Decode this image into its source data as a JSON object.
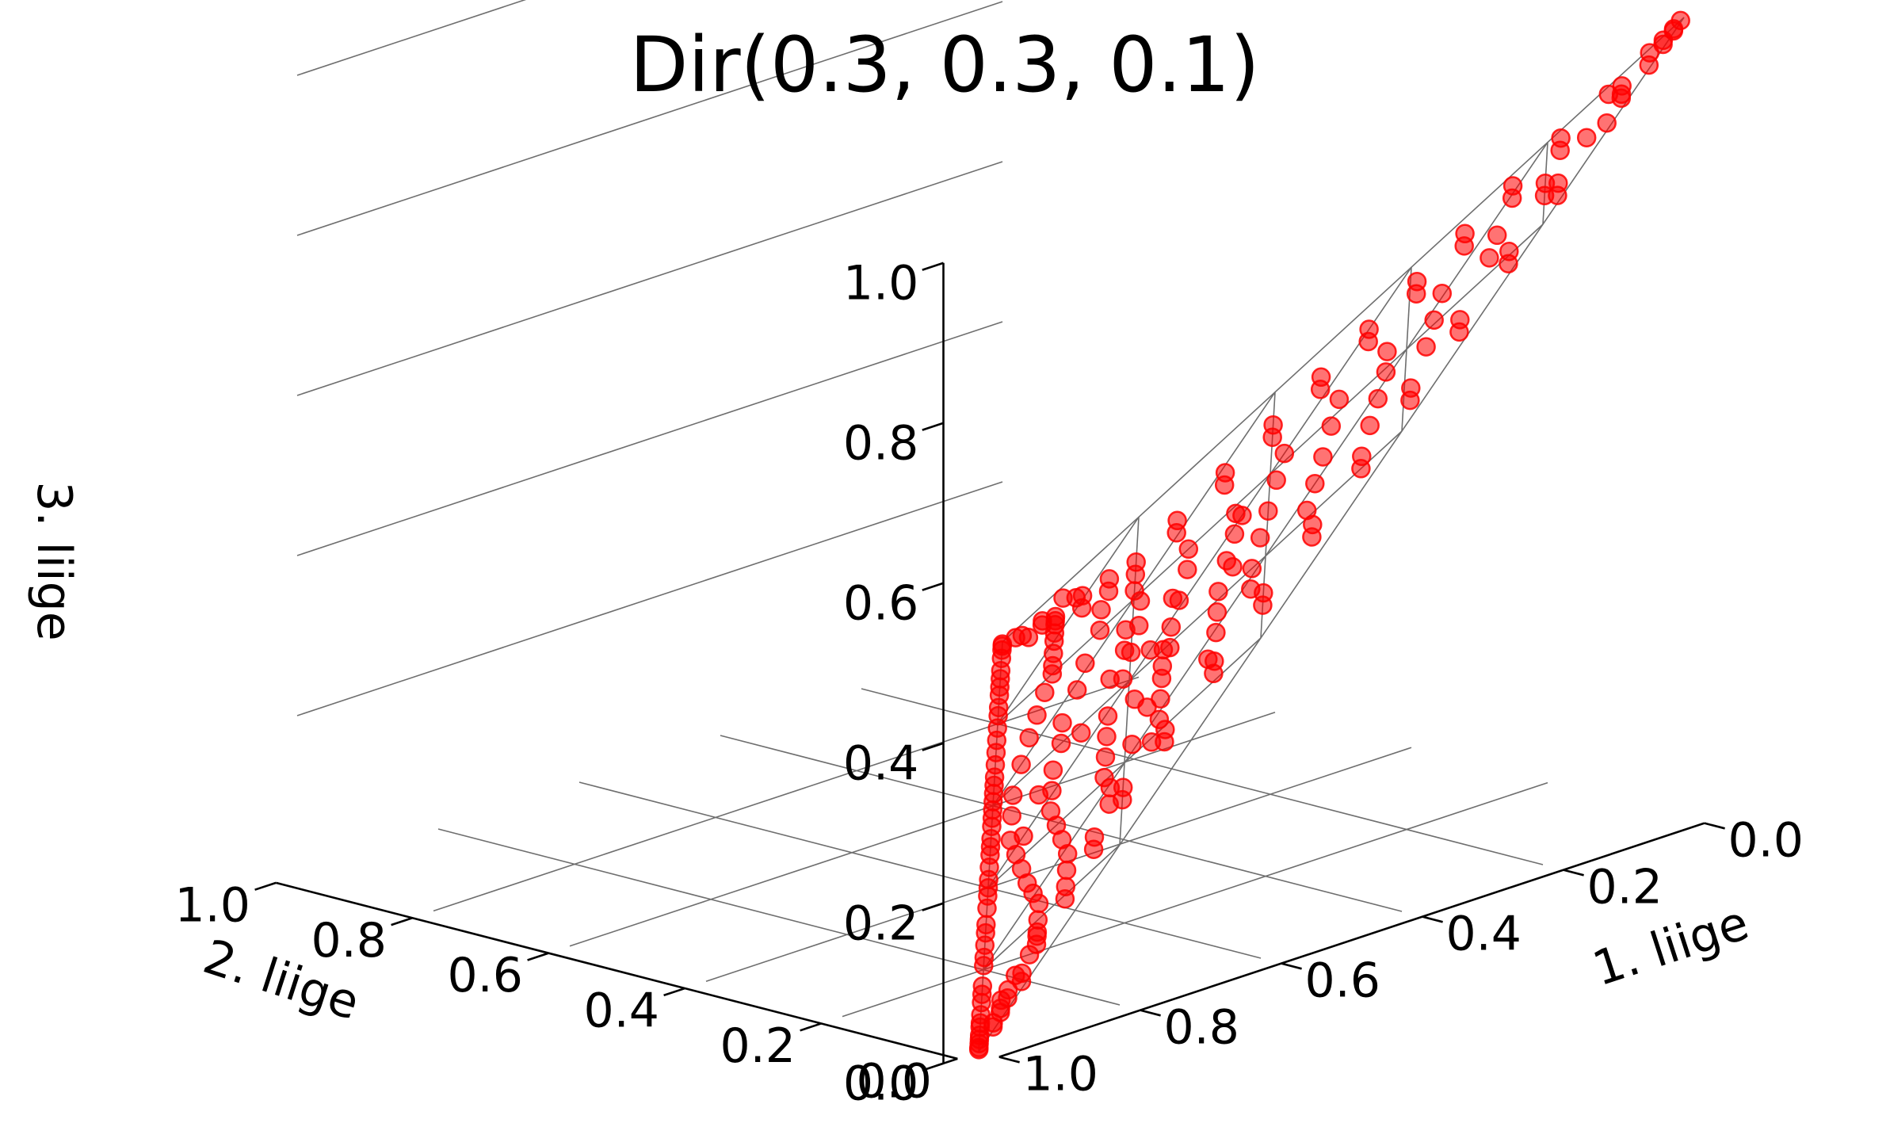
{
  "chart_data": {
    "type": "scatter",
    "title": "Dir(0.3, 0.3, 0.1)",
    "projection": "3d",
    "grid": true,
    "marker_color": "#ff0000",
    "marker_alpha": 0.55,
    "axes": {
      "x": {
        "label": "1. liige",
        "range": [
          0.0,
          1.0
        ],
        "ticks": [
          "0.0",
          "0.2",
          "0.4",
          "0.6",
          "0.8",
          "1.0"
        ]
      },
      "y": {
        "label": "2. liige",
        "range": [
          0.0,
          1.0
        ],
        "ticks": [
          "0.0",
          "0.2",
          "0.4",
          "0.6",
          "0.8",
          "1.0"
        ]
      },
      "z": {
        "label": "3. liige",
        "range": [
          0.0,
          1.0
        ],
        "ticks": [
          "0.0",
          "0.2",
          "0.4",
          "0.6",
          "0.8",
          "1.0"
        ]
      }
    },
    "points": [
      [
        0.62,
        0.38,
        0.0
      ],
      [
        0.55,
        0.45,
        0.0
      ],
      [
        0.48,
        0.52,
        0.0
      ],
      [
        0.41,
        0.59,
        0.0
      ],
      [
        0.37,
        0.63,
        0.0
      ],
      [
        0.33,
        0.67,
        0.0
      ],
      [
        0.27,
        0.73,
        0.0
      ],
      [
        0.21,
        0.79,
        0.0
      ],
      [
        0.16,
        0.84,
        0.0
      ],
      [
        0.11,
        0.89,
        0.0
      ],
      [
        0.07,
        0.93,
        0.0
      ],
      [
        0.04,
        0.96,
        0.0
      ],
      [
        0.02,
        0.98,
        0.0
      ],
      [
        0.01,
        0.99,
        0.0
      ],
      [
        0.005,
        0.995,
        0.0
      ],
      [
        0.99,
        0.01,
        0.0
      ],
      [
        0.98,
        0.02,
        0.0
      ],
      [
        0.96,
        0.04,
        0.0
      ],
      [
        0.94,
        0.06,
        0.0
      ],
      [
        0.91,
        0.09,
        0.0
      ],
      [
        0.88,
        0.12,
        0.0
      ],
      [
        0.84,
        0.16,
        0.0
      ],
      [
        0.79,
        0.21,
        0.0
      ],
      [
        0.74,
        0.26,
        0.0
      ],
      [
        0.69,
        0.31,
        0.0
      ],
      [
        0.65,
        0.35,
        0.0
      ],
      [
        0.58,
        0.42,
        0.0
      ],
      [
        0.52,
        0.48,
        0.0
      ],
      [
        0.45,
        0.55,
        0.0
      ],
      [
        0.39,
        0.61,
        0.0
      ],
      [
        0.3,
        0.7,
        0.0
      ],
      [
        0.24,
        0.76,
        0.0
      ],
      [
        0.18,
        0.82,
        0.0
      ],
      [
        0.13,
        0.87,
        0.0
      ],
      [
        0.09,
        0.91,
        0.0
      ],
      [
        0.995,
        0.005,
        0.0
      ],
      [
        0.97,
        0.03,
        0.0
      ],
      [
        0.93,
        0.07,
        0.0
      ],
      [
        0.86,
        0.14,
        0.0
      ],
      [
        0.77,
        0.23,
        0.0
      ],
      [
        0.71,
        0.29,
        0.0
      ],
      [
        0.6,
        0.4,
        0.0
      ],
      [
        0.5,
        0.5,
        0.0
      ],
      [
        0.43,
        0.57,
        0.0
      ],
      [
        0.35,
        0.65,
        0.0
      ],
      [
        0.02,
        0.96,
        0.02
      ],
      [
        0.03,
        0.94,
        0.03
      ],
      [
        0.05,
        0.91,
        0.04
      ],
      [
        0.04,
        0.9,
        0.06
      ],
      [
        0.06,
        0.86,
        0.08
      ],
      [
        0.08,
        0.84,
        0.08
      ],
      [
        0.07,
        0.81,
        0.12
      ],
      [
        0.1,
        0.78,
        0.12
      ],
      [
        0.09,
        0.75,
        0.16
      ],
      [
        0.12,
        0.72,
        0.16
      ],
      [
        0.11,
        0.69,
        0.2
      ],
      [
        0.14,
        0.66,
        0.2
      ],
      [
        0.1,
        0.64,
        0.26
      ],
      [
        0.13,
        0.61,
        0.26
      ],
      [
        0.09,
        0.58,
        0.33
      ],
      [
        0.12,
        0.55,
        0.33
      ],
      [
        0.08,
        0.52,
        0.4
      ],
      [
        0.11,
        0.49,
        0.4
      ],
      [
        0.07,
        0.46,
        0.47
      ],
      [
        0.1,
        0.43,
        0.47
      ],
      [
        0.06,
        0.4,
        0.54
      ],
      [
        0.09,
        0.37,
        0.54
      ],
      [
        0.05,
        0.34,
        0.61
      ],
      [
        0.08,
        0.31,
        0.61
      ],
      [
        0.04,
        0.28,
        0.68
      ],
      [
        0.07,
        0.25,
        0.68
      ],
      [
        0.03,
        0.22,
        0.75
      ],
      [
        0.06,
        0.19,
        0.75
      ],
      [
        0.02,
        0.16,
        0.82
      ],
      [
        0.05,
        0.13,
        0.82
      ],
      [
        0.02,
        0.09,
        0.89
      ],
      [
        0.03,
        0.06,
        0.91
      ],
      [
        0.01,
        0.04,
        0.95
      ],
      [
        0.01,
        0.02,
        0.97
      ],
      [
        0.005,
        0.01,
        0.985
      ],
      [
        0.0,
        0.005,
        0.995
      ],
      [
        0.01,
        0.005,
        0.985
      ],
      [
        0.02,
        0.01,
        0.97
      ],
      [
        0.04,
        0.01,
        0.95
      ],
      [
        0.06,
        0.03,
        0.91
      ],
      [
        0.09,
        0.02,
        0.89
      ],
      [
        0.13,
        0.05,
        0.82
      ],
      [
        0.16,
        0.02,
        0.82
      ],
      [
        0.19,
        0.06,
        0.75
      ],
      [
        0.22,
        0.03,
        0.75
      ],
      [
        0.25,
        0.07,
        0.68
      ],
      [
        0.28,
        0.04,
        0.68
      ],
      [
        0.31,
        0.08,
        0.61
      ],
      [
        0.34,
        0.05,
        0.61
      ],
      [
        0.37,
        0.09,
        0.54
      ],
      [
        0.4,
        0.06,
        0.54
      ],
      [
        0.43,
        0.1,
        0.47
      ],
      [
        0.46,
        0.07,
        0.47
      ],
      [
        0.49,
        0.11,
        0.4
      ],
      [
        0.52,
        0.08,
        0.4
      ],
      [
        0.55,
        0.12,
        0.33
      ],
      [
        0.58,
        0.09,
        0.33
      ],
      [
        0.61,
        0.13,
        0.26
      ],
      [
        0.64,
        0.1,
        0.26
      ],
      [
        0.66,
        0.14,
        0.2
      ],
      [
        0.69,
        0.11,
        0.2
      ],
      [
        0.72,
        0.12,
        0.16
      ],
      [
        0.75,
        0.09,
        0.16
      ],
      [
        0.78,
        0.1,
        0.12
      ],
      [
        0.81,
        0.07,
        0.12
      ],
      [
        0.84,
        0.08,
        0.08
      ],
      [
        0.86,
        0.06,
        0.08
      ],
      [
        0.9,
        0.04,
        0.06
      ],
      [
        0.91,
        0.05,
        0.04
      ],
      [
        0.94,
        0.03,
        0.03
      ],
      [
        0.96,
        0.02,
        0.02
      ],
      [
        0.97,
        0.01,
        0.02
      ],
      [
        0.95,
        0.02,
        0.03
      ],
      [
        0.93,
        0.03,
        0.04
      ],
      [
        0.92,
        0.02,
        0.06
      ],
      [
        0.05,
        0.89,
        0.06
      ],
      [
        0.03,
        0.88,
        0.09
      ],
      [
        0.07,
        0.85,
        0.08
      ],
      [
        0.06,
        0.83,
        0.11
      ],
      [
        0.1,
        0.82,
        0.08
      ],
      [
        0.12,
        0.8,
        0.08
      ],
      [
        0.15,
        0.77,
        0.08
      ],
      [
        0.18,
        0.74,
        0.08
      ],
      [
        0.2,
        0.72,
        0.08
      ],
      [
        0.23,
        0.7,
        0.07
      ],
      [
        0.27,
        0.67,
        0.06
      ],
      [
        0.31,
        0.64,
        0.05
      ],
      [
        0.36,
        0.6,
        0.04
      ],
      [
        0.42,
        0.55,
        0.03
      ],
      [
        0.47,
        0.5,
        0.03
      ],
      [
        0.53,
        0.44,
        0.03
      ],
      [
        0.58,
        0.38,
        0.04
      ],
      [
        0.63,
        0.32,
        0.05
      ],
      [
        0.68,
        0.26,
        0.06
      ],
      [
        0.72,
        0.21,
        0.07
      ],
      [
        0.76,
        0.16,
        0.08
      ],
      [
        0.8,
        0.12,
        0.08
      ],
      [
        0.83,
        0.09,
        0.08
      ],
      [
        0.87,
        0.06,
        0.07
      ],
      [
        0.89,
        0.06,
        0.05
      ],
      [
        0.92,
        0.05,
        0.03
      ],
      [
        0.15,
        0.7,
        0.15
      ],
      [
        0.2,
        0.65,
        0.15
      ],
      [
        0.25,
        0.62,
        0.13
      ],
      [
        0.3,
        0.58,
        0.12
      ],
      [
        0.35,
        0.55,
        0.1
      ],
      [
        0.4,
        0.5,
        0.1
      ],
      [
        0.45,
        0.46,
        0.09
      ],
      [
        0.5,
        0.41,
        0.09
      ],
      [
        0.55,
        0.36,
        0.09
      ],
      [
        0.6,
        0.3,
        0.1
      ],
      [
        0.65,
        0.24,
        0.11
      ],
      [
        0.7,
        0.18,
        0.12
      ],
      [
        0.74,
        0.14,
        0.12
      ],
      [
        0.18,
        0.62,
        0.2
      ],
      [
        0.22,
        0.57,
        0.21
      ],
      [
        0.28,
        0.51,
        0.21
      ],
      [
        0.33,
        0.47,
        0.2
      ],
      [
        0.38,
        0.43,
        0.19
      ],
      [
        0.44,
        0.39,
        0.17
      ],
      [
        0.49,
        0.34,
        0.17
      ],
      [
        0.54,
        0.29,
        0.17
      ],
      [
        0.59,
        0.24,
        0.17
      ],
      [
        0.63,
        0.19,
        0.18
      ],
      [
        0.67,
        0.15,
        0.18
      ],
      [
        0.2,
        0.52,
        0.28
      ],
      [
        0.25,
        0.47,
        0.28
      ],
      [
        0.31,
        0.42,
        0.27
      ],
      [
        0.36,
        0.38,
        0.26
      ],
      [
        0.41,
        0.33,
        0.26
      ],
      [
        0.47,
        0.28,
        0.25
      ],
      [
        0.52,
        0.23,
        0.25
      ],
      [
        0.57,
        0.18,
        0.25
      ],
      [
        0.61,
        0.15,
        0.24
      ],
      [
        0.22,
        0.43,
        0.35
      ],
      [
        0.27,
        0.38,
        0.35
      ],
      [
        0.32,
        0.34,
        0.34
      ],
      [
        0.38,
        0.29,
        0.33
      ],
      [
        0.43,
        0.24,
        0.33
      ],
      [
        0.48,
        0.19,
        0.33
      ],
      [
        0.53,
        0.15,
        0.32
      ],
      [
        0.18,
        0.4,
        0.42
      ],
      [
        0.23,
        0.36,
        0.41
      ],
      [
        0.29,
        0.31,
        0.4
      ],
      [
        0.34,
        0.27,
        0.39
      ],
      [
        0.4,
        0.22,
        0.38
      ],
      [
        0.45,
        0.17,
        0.38
      ],
      [
        0.17,
        0.33,
        0.5
      ],
      [
        0.22,
        0.29,
        0.49
      ],
      [
        0.28,
        0.24,
        0.48
      ],
      [
        0.33,
        0.2,
        0.47
      ],
      [
        0.38,
        0.16,
        0.46
      ],
      [
        0.16,
        0.27,
        0.57
      ],
      [
        0.21,
        0.22,
        0.57
      ],
      [
        0.26,
        0.18,
        0.56
      ],
      [
        0.31,
        0.14,
        0.55
      ],
      [
        0.14,
        0.21,
        0.65
      ],
      [
        0.19,
        0.17,
        0.64
      ],
      [
        0.24,
        0.13,
        0.63
      ],
      [
        0.12,
        0.15,
        0.73
      ],
      [
        0.16,
        0.12,
        0.72
      ],
      [
        0.1,
        0.1,
        0.8
      ],
      [
        0.13,
        0.07,
        0.8
      ],
      [
        0.08,
        0.06,
        0.86
      ],
      [
        0.05,
        0.04,
        0.91
      ],
      [
        0.35,
        0.48,
        0.17
      ],
      [
        0.42,
        0.45,
        0.13
      ],
      [
        0.48,
        0.45,
        0.07
      ],
      [
        0.55,
        0.4,
        0.05
      ],
      [
        0.26,
        0.55,
        0.19
      ],
      [
        0.31,
        0.5,
        0.19
      ],
      [
        0.46,
        0.33,
        0.21
      ],
      [
        0.51,
        0.26,
        0.23
      ],
      [
        0.57,
        0.22,
        0.21
      ],
      [
        0.37,
        0.4,
        0.23
      ],
      [
        0.29,
        0.45,
        0.26
      ],
      [
        0.44,
        0.31,
        0.25
      ],
      [
        0.4,
        0.35,
        0.25
      ],
      [
        0.24,
        0.4,
        0.36
      ],
      [
        0.35,
        0.3,
        0.35
      ]
    ]
  }
}
